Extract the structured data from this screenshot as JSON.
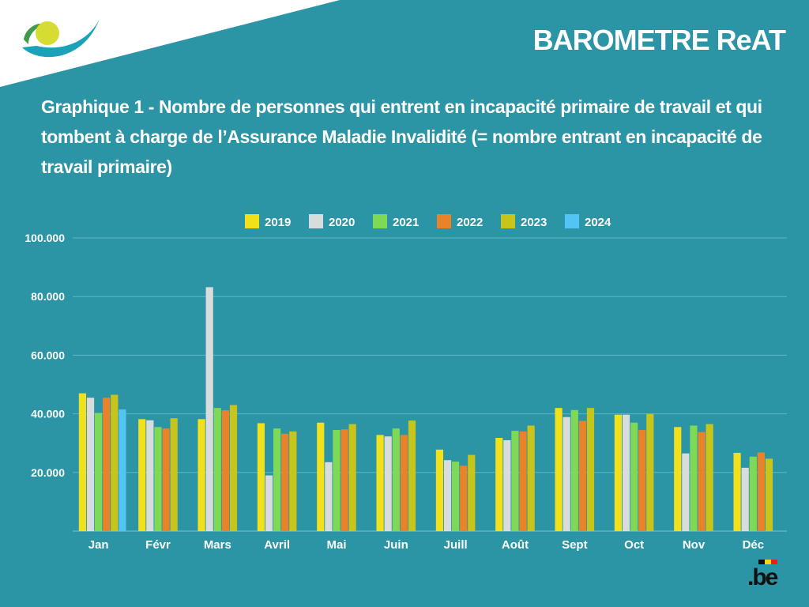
{
  "header": {
    "brand": "BAROMETRE ReAT"
  },
  "colors": {
    "background": "#2b95a6",
    "corner": "#ffffff",
    "logo_teal": "#1aa3b8",
    "logo_yellow": "#d6dc32",
    "logo_green": "#3f9a4b",
    "series": [
      "#f2e01b",
      "#d9dcdc",
      "#7ed957",
      "#e8832a",
      "#c7c41b",
      "#52c5f5"
    ]
  },
  "be_logo": {
    "text": ".be"
  },
  "chart_data": {
    "type": "bar",
    "title": "Graphique 1 - Nombre de personnes qui entrent en incapacité primaire de travail et qui tombent à charge de l’Assurance Maladie Invalidité (= nombre entrant en incapacité de travail primaire)",
    "xlabel": "",
    "ylabel": "",
    "ylim": [
      0,
      100000
    ],
    "yticks": [
      20000,
      40000,
      60000,
      80000,
      100000
    ],
    "ytick_labels": [
      "20.000",
      "40.000",
      "60.000",
      "80.000",
      "100.000"
    ],
    "grid": true,
    "legend_position": "top-center",
    "categories": [
      "Jan",
      "Févr",
      "Mars",
      "Avril",
      "Mai",
      "Juin",
      "Juill",
      "Août",
      "Sept",
      "Oct",
      "Nov",
      "Déc"
    ],
    "series": [
      {
        "name": "2019",
        "color": "#f2e01b",
        "values": [
          47000,
          38200,
          38200,
          36800,
          37000,
          32800,
          27800,
          31800,
          42000,
          39700,
          35500,
          26700
        ]
      },
      {
        "name": "2020",
        "color": "#d9dcdc",
        "values": [
          45500,
          37800,
          83200,
          19000,
          23500,
          32300,
          24200,
          31000,
          38900,
          39700,
          26500,
          21600
        ]
      },
      {
        "name": "2021",
        "color": "#7ed957",
        "values": [
          40300,
          35500,
          42000,
          35000,
          34500,
          35000,
          23700,
          34200,
          41300,
          37000,
          36000,
          25400
        ]
      },
      {
        "name": "2022",
        "color": "#e8832a",
        "values": [
          45500,
          35000,
          41200,
          33200,
          34700,
          32800,
          22300,
          34000,
          37600,
          34500,
          33800,
          26800
        ]
      },
      {
        "name": "2023",
        "color": "#c7c41b",
        "values": [
          46500,
          38500,
          43000,
          34000,
          36500,
          37700,
          26000,
          36000,
          42000,
          40000,
          36500,
          24700
        ]
      },
      {
        "name": "2024",
        "color": "#52c5f5",
        "values": [
          41500,
          null,
          null,
          null,
          null,
          null,
          null,
          null,
          null,
          null,
          null,
          null
        ]
      }
    ]
  }
}
